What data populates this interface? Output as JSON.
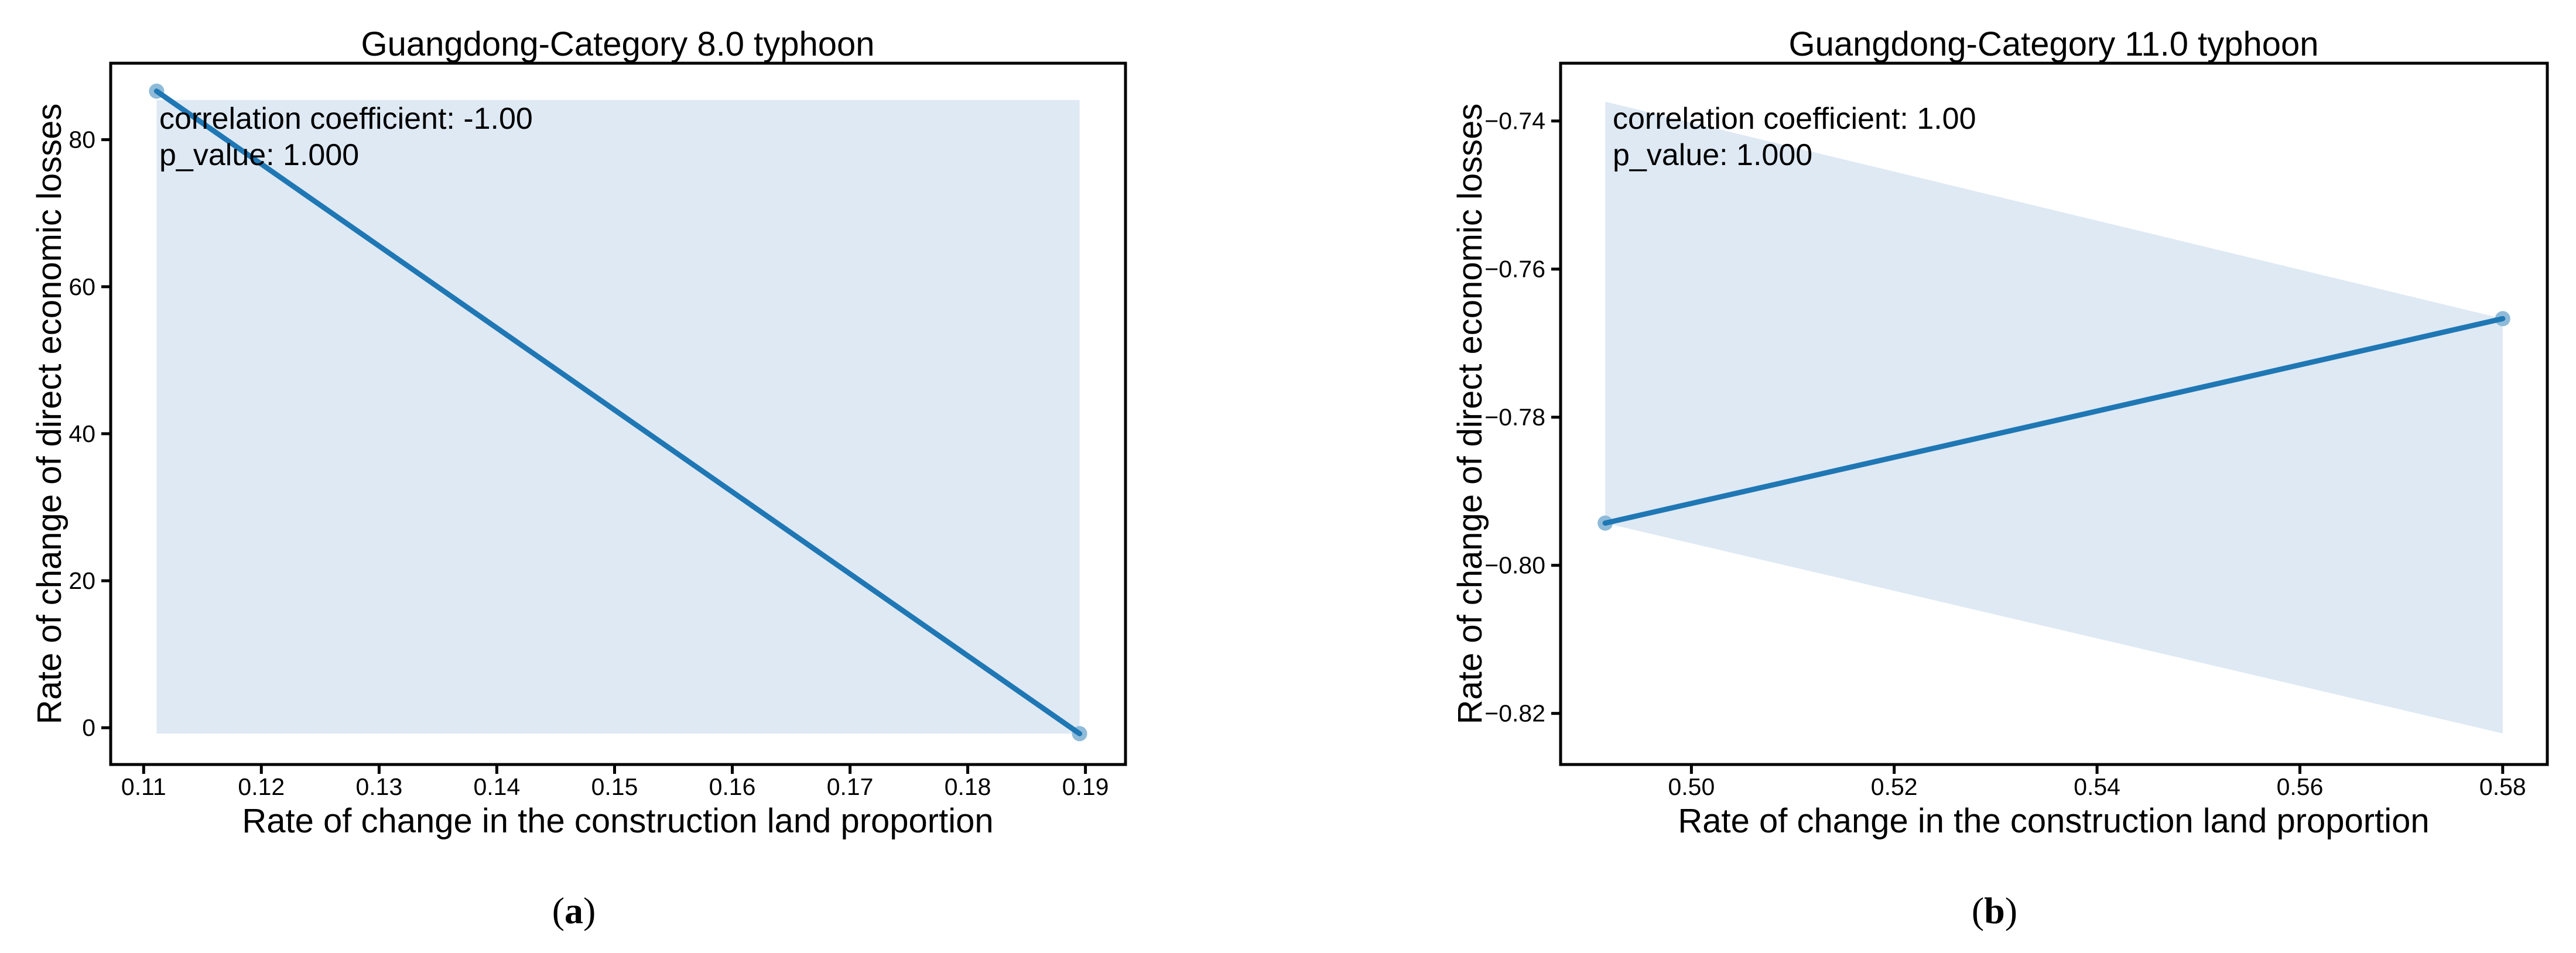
{
  "colors": {
    "line": "#1f77b4",
    "marker": "#8fbbd9",
    "ci_band": "#dee9f4",
    "axis": "#000000",
    "text": "#000000",
    "background": "#ffffff"
  },
  "chart_data": [
    {
      "type": "line",
      "title": "Guangdong-Category 8.0 typhoon",
      "xlabel": "Rate of change in the construction land proportion",
      "ylabel": "Rate of change of direct economic losses",
      "xlim": [
        0.1072,
        0.1934
      ],
      "ylim": [
        -5.0,
        90.4
      ],
      "grid": false,
      "legend": "none",
      "xticks": [
        0.11,
        0.12,
        0.13,
        0.14,
        0.15,
        0.16,
        0.17,
        0.18,
        0.19
      ],
      "xtick_labels": [
        "0.11",
        "0.12",
        "0.13",
        "0.14",
        "0.15",
        "0.16",
        "0.17",
        "0.18",
        "0.19"
      ],
      "yticks": [
        0,
        20,
        40,
        60,
        80
      ],
      "ytick_labels": [
        "0",
        "20",
        "40",
        "60",
        "80"
      ],
      "series": [
        {
          "name": "regression line",
          "x": [
            0.1111,
            0.1895
          ],
          "y": [
            86.6,
            -0.8
          ]
        }
      ],
      "scatter_points": [
        [
          0.1111,
          86.6
        ],
        [
          0.1895,
          -0.8
        ]
      ],
      "ci_band_polygon": [
        [
          0.1111,
          85.4
        ],
        [
          0.1895,
          85.4
        ],
        [
          0.1895,
          -0.8
        ],
        [
          0.1111,
          -0.8
        ]
      ],
      "annotation": {
        "line1": "correlation coefficient: -1.00",
        "line2": "p_value: 1.000",
        "correlation_coefficient": -1.0,
        "p_value": 1.0
      },
      "caption": {
        "open": "(",
        "label": "a",
        "close": ")"
      }
    },
    {
      "type": "line",
      "title": "Guangdong-Category 11.0 typhoon",
      "xlabel": "Rate of change in the construction land proportion",
      "ylabel": "Rate of change of direct economic losses",
      "xlim": [
        0.4871,
        0.5844
      ],
      "ylim": [
        -0.8269,
        -0.7322
      ],
      "grid": false,
      "legend": "none",
      "xticks": [
        0.5,
        0.52,
        0.54,
        0.56,
        0.58
      ],
      "xtick_labels": [
        "0.50",
        "0.52",
        "0.54",
        "0.56",
        "0.58"
      ],
      "yticks": [
        -0.74,
        -0.76,
        -0.78,
        -0.8,
        -0.82
      ],
      "ytick_labels": [
        "−0.74",
        "−0.76",
        "−0.78",
        "−0.80",
        "−0.82"
      ],
      "series": [
        {
          "name": "regression line",
          "x": [
            0.4915,
            0.58
          ],
          "y": [
            -0.7943,
            -0.7667
          ]
        }
      ],
      "scatter_points": [
        [
          0.4915,
          -0.7943
        ],
        [
          0.58,
          -0.7667
        ]
      ],
      "ci_band_polygon": [
        [
          0.4915,
          -0.7374
        ],
        [
          0.58,
          -0.7667
        ],
        [
          0.58,
          -0.8227
        ],
        [
          0.4915,
          -0.7943
        ]
      ],
      "annotation": {
        "line1": "correlation coefficient: 1.00",
        "line2": "p_value: 1.000",
        "correlation_coefficient": 1.0,
        "p_value": 1.0
      },
      "caption": {
        "open": "(",
        "label": "b",
        "close": ")"
      }
    }
  ]
}
